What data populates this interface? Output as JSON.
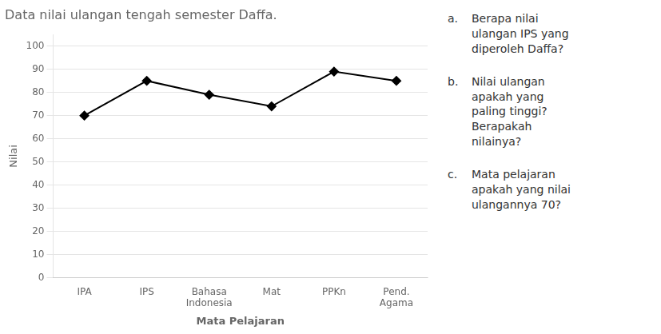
{
  "chart_data": {
    "type": "line",
    "title": "Data nilai ulangan tengah semester Daffa.",
    "categories": [
      "IPA",
      "IPS",
      "Bahasa\nIndonesia",
      "Mat",
      "PPKn",
      "Pend.\nAgama"
    ],
    "values": [
      70,
      85,
      79,
      74,
      89,
      85
    ],
    "color": "#000000",
    "marker": "diamond",
    "xlabel": "Mata Pelajaran",
    "ylabel": "Nilai",
    "ylim": [
      0,
      105
    ],
    "yticks": [
      0,
      10,
      20,
      30,
      40,
      50,
      60,
      70,
      80,
      90,
      100
    ],
    "grid": true,
    "annotations": [
      {
        "label": "a.",
        "text": "Berapa nilai\nulangan IPS yang\ndiperoleh Daffa?"
      },
      {
        "label": "b.",
        "text": "Nilai ulangan\napakah yang\npaling tinggi?\nBerapakah\nnilainya?"
      },
      {
        "label": "c.",
        "text": "Mata pelajaran\napakah yang nilai\nulangannya 70?"
      }
    ]
  }
}
